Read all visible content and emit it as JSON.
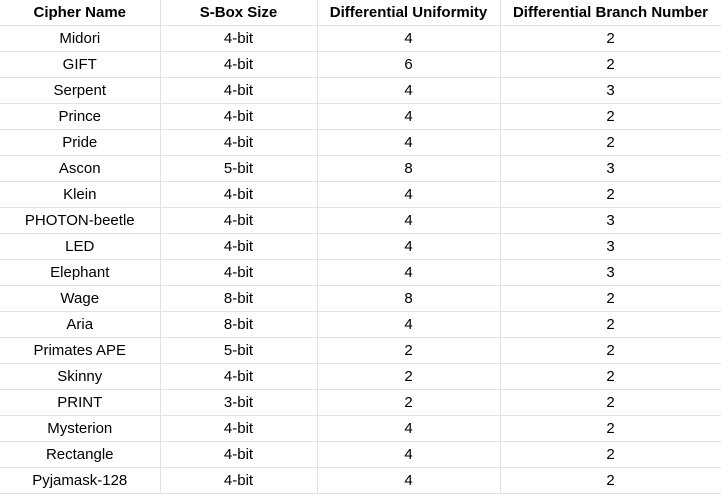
{
  "table": {
    "headers": [
      "Cipher Name",
      "S-Box Size",
      "Differential Uniformity",
      "Differential Branch Number"
    ],
    "rows": [
      [
        "Midori",
        "4-bit",
        "4",
        "2"
      ],
      [
        "GIFT",
        "4-bit",
        "6",
        "2"
      ],
      [
        "Serpent",
        "4-bit",
        "4",
        "3"
      ],
      [
        "Prince",
        "4-bit",
        "4",
        "2"
      ],
      [
        "Pride",
        "4-bit",
        "4",
        "2"
      ],
      [
        "Ascon",
        "5-bit",
        "8",
        "3"
      ],
      [
        "Klein",
        "4-bit",
        "4",
        "2"
      ],
      [
        "PHOTON-beetle",
        "4-bit",
        "4",
        "3"
      ],
      [
        "LED",
        "4-bit",
        "4",
        "3"
      ],
      [
        "Elephant",
        "4-bit",
        "4",
        "3"
      ],
      [
        "Wage",
        "8-bit",
        "8",
        "2"
      ],
      [
        "Aria",
        "8-bit",
        "4",
        "2"
      ],
      [
        "Primates APE",
        "5-bit",
        "2",
        "2"
      ],
      [
        "Skinny",
        "4-bit",
        "2",
        "2"
      ],
      [
        "PRINT",
        "3-bit",
        "2",
        "2"
      ],
      [
        "Mysterion",
        "4-bit",
        "4",
        "2"
      ],
      [
        "Rectangle",
        "4-bit",
        "4",
        "2"
      ],
      [
        "Pyjamask-128",
        "4-bit",
        "4",
        "2"
      ]
    ]
  }
}
